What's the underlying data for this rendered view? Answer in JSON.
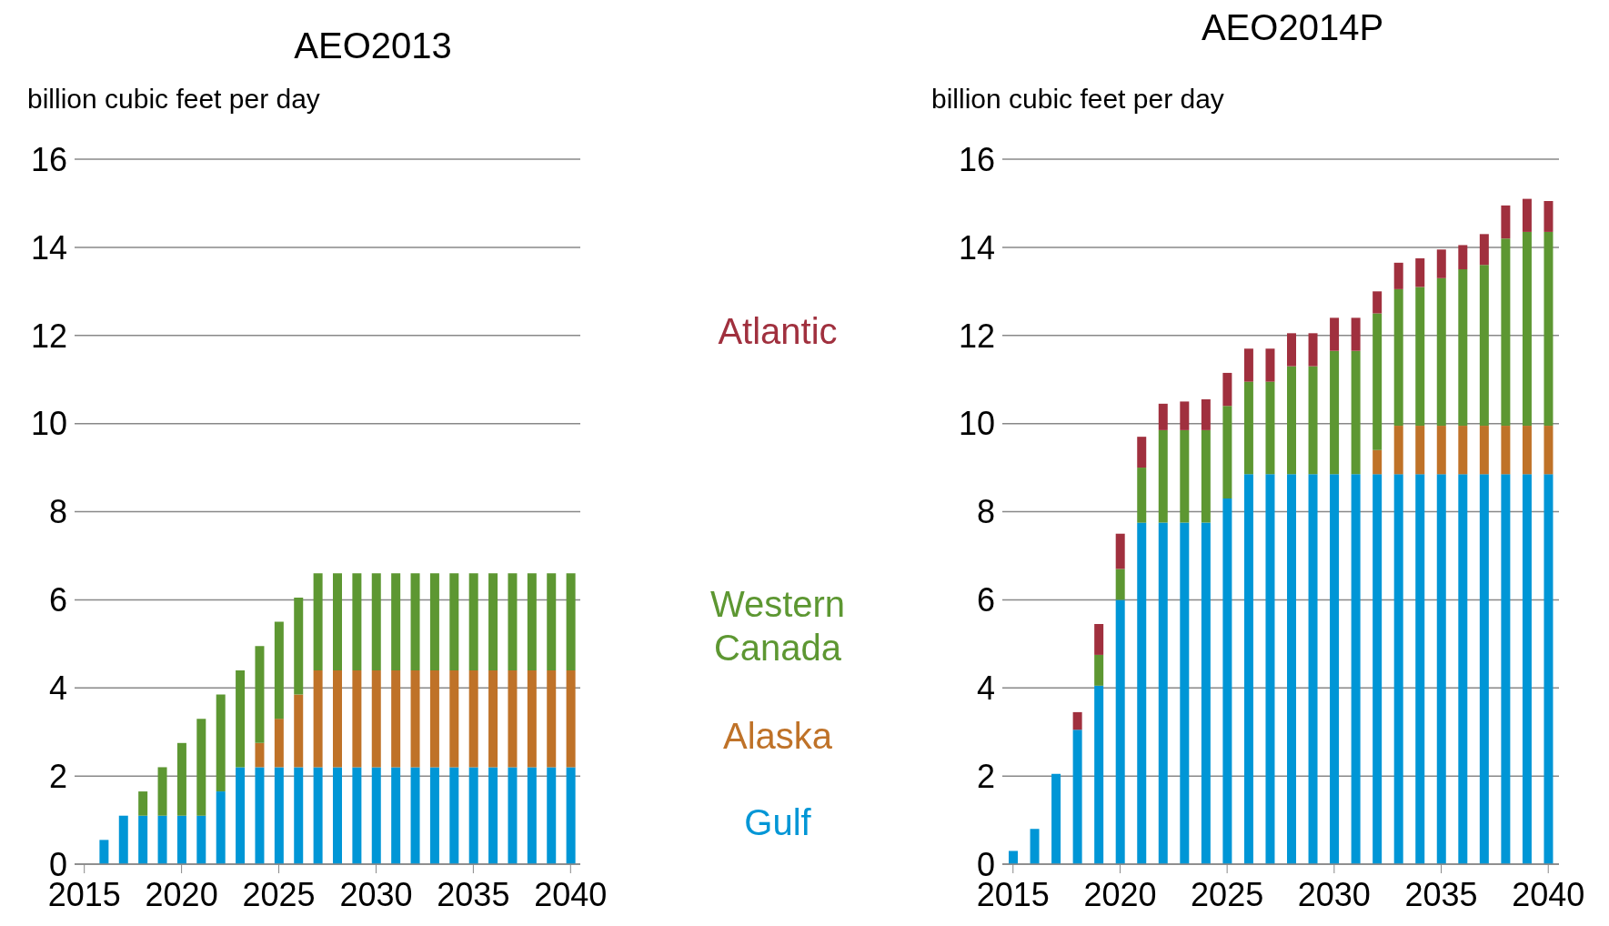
{
  "chart_data": [
    {
      "type": "bar",
      "title": "AEO2013",
      "ylabel": "billion cubic feet per day",
      "stacked": true,
      "x": [
        2016,
        2017,
        2018,
        2019,
        2020,
        2021,
        2022,
        2023,
        2024,
        2025,
        2026,
        2027,
        2028,
        2029,
        2030,
        2031,
        2032,
        2033,
        2034,
        2035,
        2036,
        2037,
        2038,
        2039,
        2040
      ],
      "xlim": [
        2014.5,
        2040.5
      ],
      "xticks": [
        2015,
        2020,
        2025,
        2030,
        2035,
        2040
      ],
      "ylim": [
        0,
        16
      ],
      "yticks": [
        0,
        2,
        4,
        6,
        8,
        10,
        12,
        14,
        16
      ],
      "grid": "y",
      "legend": "right",
      "series": [
        {
          "name": "Gulf",
          "color": "#0096d6",
          "values": [
            0.55,
            1.1,
            1.1,
            1.1,
            1.1,
            1.1,
            1.65,
            2.2,
            2.2,
            2.2,
            2.2,
            2.2,
            2.2,
            2.2,
            2.2,
            2.2,
            2.2,
            2.2,
            2.2,
            2.2,
            2.2,
            2.2,
            2.2,
            2.2,
            2.2
          ]
        },
        {
          "name": "Alaska",
          "color": "#bf7228",
          "values": [
            null,
            null,
            null,
            null,
            null,
            null,
            null,
            null,
            0.55,
            1.1,
            1.65,
            2.2,
            2.2,
            2.2,
            2.2,
            2.2,
            2.2,
            2.2,
            2.2,
            2.2,
            2.2,
            2.2,
            2.2,
            2.2,
            2.2
          ]
        },
        {
          "name": "Western Canada",
          "color": "#5d9732",
          "values": [
            null,
            null,
            0.55,
            1.1,
            1.65,
            2.2,
            2.2,
            2.2,
            2.2,
            2.2,
            2.2,
            2.2,
            2.2,
            2.2,
            2.2,
            2.2,
            2.2,
            2.2,
            2.2,
            2.2,
            2.2,
            2.2,
            2.2,
            2.2,
            2.2
          ]
        },
        {
          "name": "Atlantic",
          "color": "#a0303e",
          "values": [
            null,
            null,
            null,
            null,
            null,
            null,
            null,
            null,
            null,
            null,
            null,
            null,
            null,
            null,
            null,
            null,
            null,
            null,
            null,
            null,
            null,
            null,
            null,
            null,
            null
          ]
        }
      ]
    },
    {
      "type": "bar",
      "title": "AEO2014P",
      "ylabel": "billion cubic feet per day",
      "stacked": true,
      "x": [
        2015,
        2016,
        2017,
        2018,
        2019,
        2020,
        2021,
        2022,
        2023,
        2024,
        2025,
        2026,
        2027,
        2028,
        2029,
        2030,
        2031,
        2032,
        2033,
        2034,
        2035,
        2036,
        2037,
        2038,
        2039,
        2040
      ],
      "xlim": [
        2014.5,
        2040.5
      ],
      "xticks": [
        2015,
        2020,
        2025,
        2030,
        2035,
        2040
      ],
      "ylim": [
        0,
        16
      ],
      "yticks": [
        0,
        2,
        4,
        6,
        8,
        10,
        12,
        14,
        16
      ],
      "grid": "y",
      "series": [
        {
          "color": "#0096d6",
          "values": [
            0.3,
            0.8,
            2.05,
            3.05,
            4.05,
            6.0,
            7.75,
            7.75,
            7.75,
            7.75,
            8.3,
            8.85,
            8.85,
            8.85,
            8.85,
            8.85,
            8.85,
            8.85,
            8.85,
            8.85,
            8.85,
            8.85,
            8.85,
            8.85,
            8.85,
            8.85
          ]
        },
        {
          "color": "#bf7228",
          "values": [
            null,
            null,
            null,
            null,
            null,
            null,
            null,
            null,
            null,
            null,
            null,
            null,
            null,
            null,
            null,
            null,
            null,
            0.55,
            1.1,
            1.1,
            1.1,
            1.1,
            1.1,
            1.1,
            1.1,
            1.1
          ]
        },
        {
          "color": "#5d9732",
          "values": [
            null,
            null,
            null,
            null,
            0.7,
            0.7,
            1.25,
            2.1,
            2.1,
            2.1,
            2.1,
            2.1,
            2.1,
            2.45,
            2.45,
            2.8,
            2.8,
            3.1,
            3.1,
            3.15,
            3.35,
            3.55,
            3.65,
            4.25,
            4.4,
            4.4
          ]
        },
        {
          "color": "#a0303e",
          "values": [
            null,
            null,
            null,
            0.4,
            0.7,
            0.8,
            0.7,
            0.6,
            0.65,
            0.7,
            0.75,
            0.75,
            0.75,
            0.75,
            0.75,
            0.75,
            0.75,
            0.5,
            0.6,
            0.65,
            0.65,
            0.55,
            0.7,
            0.75,
            0.75,
            0.7
          ]
        }
      ]
    }
  ]
}
